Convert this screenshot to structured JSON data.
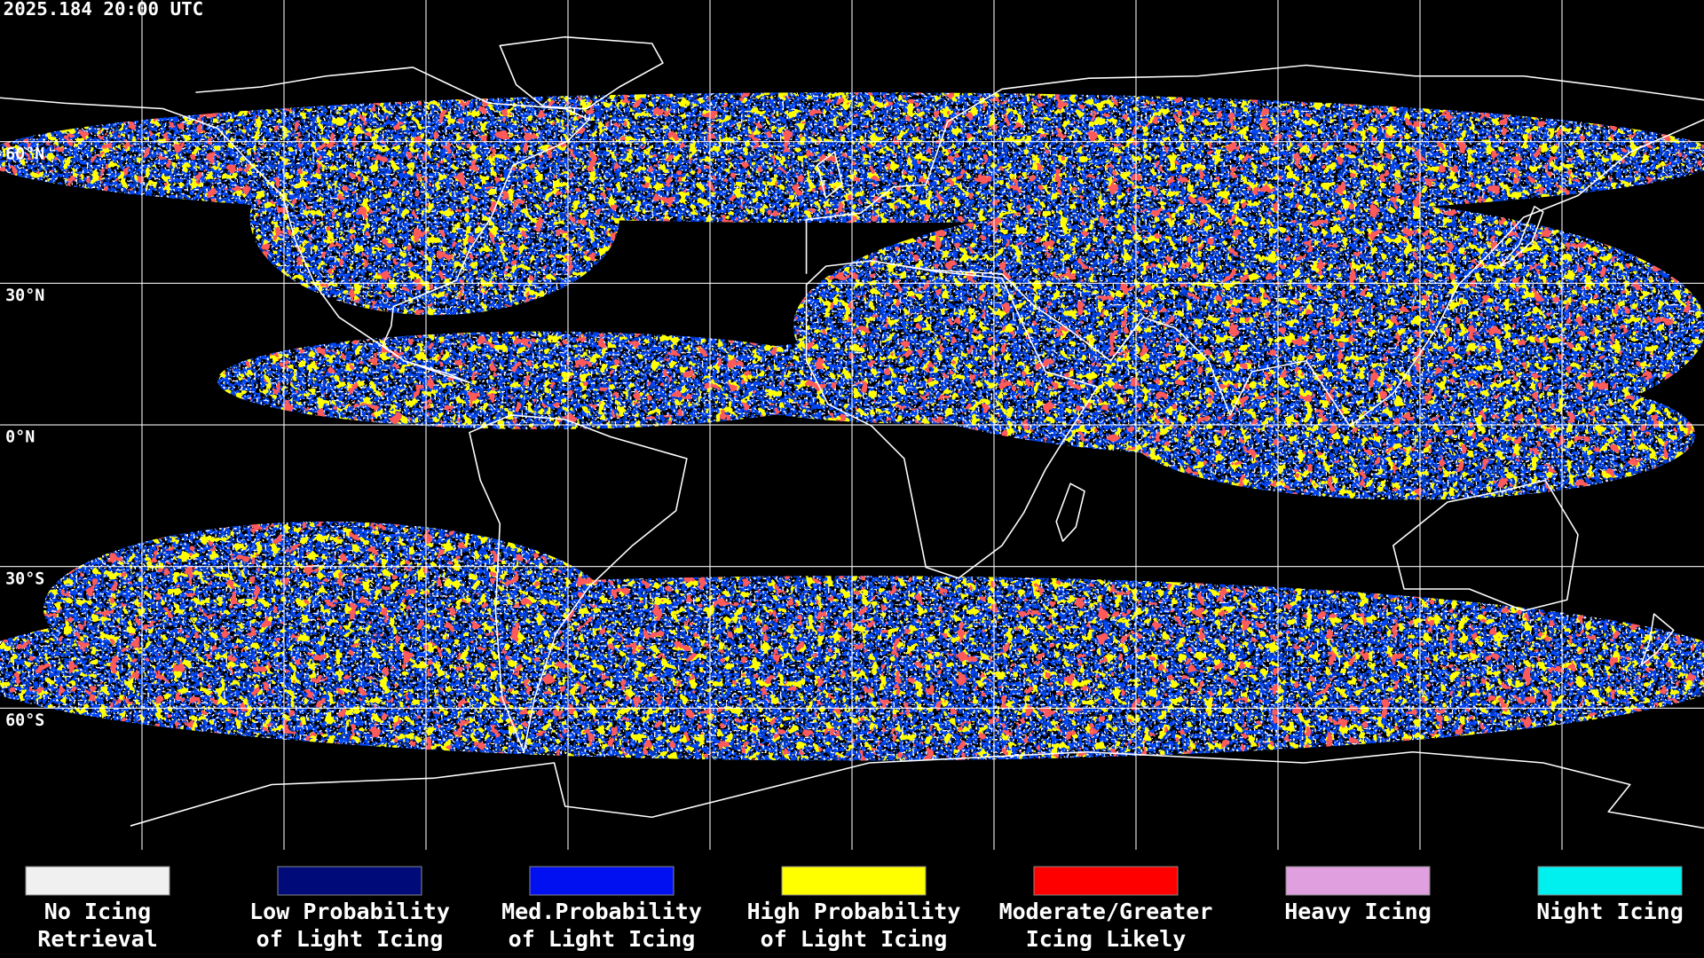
{
  "header": {
    "timestamp": "2025.184 20:00 UTC"
  },
  "map": {
    "latitude_labels": [
      "60°N",
      "30°N",
      "0°N",
      "30°S",
      "60°S"
    ]
  },
  "legend": {
    "items": [
      {
        "label_lines": [
          "No Icing",
          "Retrieval"
        ],
        "color": "#f0f0f0"
      },
      {
        "label_lines": [
          "Low Probability",
          "of Light Icing"
        ],
        "color": "#000a78"
      },
      {
        "label_lines": [
          "Med.Probability",
          "of Light Icing"
        ],
        "color": "#0010f0"
      },
      {
        "label_lines": [
          "High Probability",
          "of Light Icing"
        ],
        "color": "#ffff00"
      },
      {
        "label_lines": [
          "Moderate/Greater",
          "Icing Likely"
        ],
        "color": "#ff0000"
      },
      {
        "label_lines": [
          "Heavy Icing"
        ],
        "color": "#e0a0e0"
      },
      {
        "label_lines": [
          "Night Icing"
        ],
        "color": "#00f0f0"
      }
    ]
  }
}
